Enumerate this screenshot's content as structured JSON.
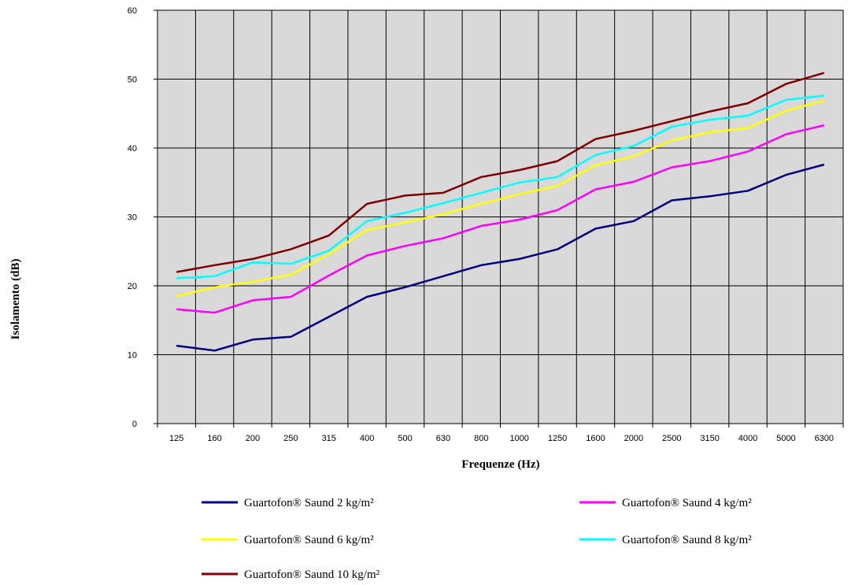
{
  "chart_data": {
    "type": "line",
    "title": "",
    "xlabel": "Frequenze (Hz)",
    "ylabel": "Isolamento (dB)",
    "ylim": [
      0,
      60
    ],
    "yticks": [
      0,
      10,
      20,
      30,
      40,
      50,
      60
    ],
    "grid": true,
    "plot_background": "#d9d9d9",
    "legend_position": "bottom",
    "categories": [
      "125",
      "160",
      "200",
      "250",
      "315",
      "400",
      "500",
      "630",
      "800",
      "1000",
      "1250",
      "1600",
      "2000",
      "2500",
      "3150",
      "4000",
      "5000",
      "6300"
    ],
    "series": [
      {
        "name": "Guartofon® Saund 2 kg/m²",
        "color": "#000080",
        "values": [
          11.3,
          10.6,
          12.2,
          12.6,
          15.5,
          18.4,
          19.8,
          21.4,
          23.0,
          23.9,
          25.3,
          28.3,
          29.4,
          32.4,
          33.0,
          33.8,
          36.1,
          37.6
        ]
      },
      {
        "name": "Guartofon® Saund 4 kg/m²",
        "color": "#ff00ff",
        "values": [
          16.6,
          16.1,
          17.9,
          18.4,
          21.5,
          24.4,
          25.8,
          26.9,
          28.7,
          29.6,
          31.0,
          34.0,
          35.1,
          37.2,
          38.1,
          39.5,
          42.0,
          43.3
        ]
      },
      {
        "name": "Guartofon® Saund 6 kg/m²",
        "color": "#ffff00",
        "values": [
          18.5,
          19.8,
          20.6,
          21.6,
          24.6,
          28.1,
          29.2,
          30.4,
          31.9,
          33.3,
          34.5,
          37.5,
          38.8,
          41.1,
          42.3,
          42.9,
          45.4,
          46.9
        ]
      },
      {
        "name": "Guartofon® Saund 8 kg/m²",
        "color": "#00ffff",
        "values": [
          21.1,
          21.4,
          23.4,
          23.2,
          25.1,
          29.4,
          30.6,
          32.0,
          33.5,
          35.0,
          35.8,
          39.0,
          40.3,
          43.1,
          44.1,
          44.7,
          47.0,
          47.6
        ]
      },
      {
        "name": "Guartofon® Saund 10 kg/m²",
        "color": "#800000",
        "values": [
          22.0,
          23.0,
          23.9,
          25.3,
          27.3,
          31.9,
          33.1,
          33.5,
          35.8,
          36.8,
          38.1,
          41.3,
          42.5,
          43.9,
          45.3,
          46.5,
          49.3,
          50.9
        ]
      }
    ]
  }
}
